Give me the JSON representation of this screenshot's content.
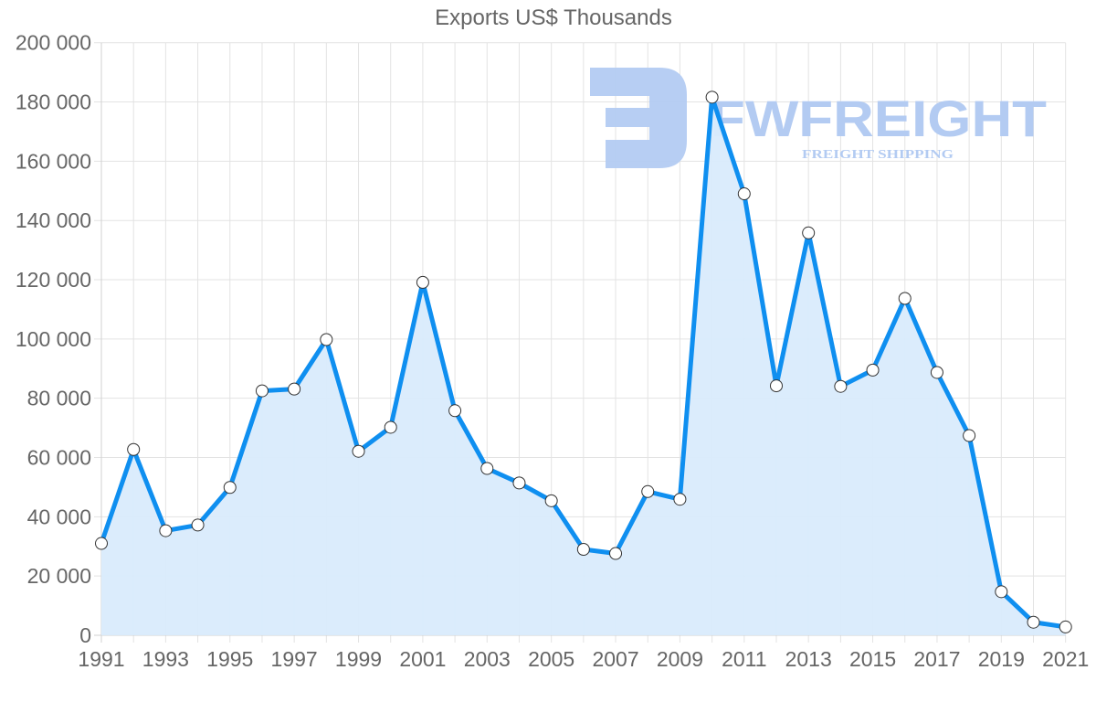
{
  "chart_data": {
    "type": "area",
    "title": "Exports US$ Thousands",
    "xlabel": "",
    "ylabel": "",
    "ylim": [
      0,
      200000
    ],
    "y_ticks": [
      0,
      20000,
      40000,
      60000,
      80000,
      100000,
      120000,
      140000,
      160000,
      180000,
      200000
    ],
    "y_tick_labels": [
      "0",
      "20 000",
      "40 000",
      "60 000",
      "80 000",
      "100 000",
      "120 000",
      "140 000",
      "160 000",
      "180 000",
      "200 000"
    ],
    "x_tick_labels": [
      "1991",
      "1993",
      "1995",
      "1997",
      "1999",
      "2001",
      "2003",
      "2005",
      "2007",
      "2009",
      "2011",
      "2013",
      "2015",
      "2017",
      "2019",
      "2021"
    ],
    "grid": true,
    "legend": null,
    "x": [
      1991,
      1992,
      1993,
      1994,
      1995,
      1996,
      1997,
      1998,
      1999,
      2000,
      2001,
      2002,
      2003,
      2004,
      2005,
      2006,
      2007,
      2008,
      2009,
      2010,
      2011,
      2012,
      2013,
      2014,
      2015,
      2016,
      2017,
      2018,
      2019,
      2020,
      2021
    ],
    "series": [
      {
        "name": "Exports",
        "values": [
          31000,
          62700,
          35300,
          37200,
          49900,
          82500,
          83100,
          99800,
          62100,
          70200,
          119100,
          75800,
          56300,
          51400,
          45400,
          29000,
          27600,
          48500,
          45900,
          181600,
          149000,
          84200,
          135800,
          84000,
          89500,
          113700,
          88700,
          67400,
          14700,
          4400,
          2800
        ]
      }
    ]
  },
  "colors": {
    "line": "#0f8ff0",
    "fill": "#d9ebfc",
    "grid": "#e3e3e3",
    "axis_text": "#666666",
    "point_fill": "#ffffff",
    "point_stroke": "#333333",
    "watermark": "#b3cbf2"
  },
  "watermark": {
    "brand": "FWFREIGHT",
    "tagline": "FREIGHT SHIPPING"
  }
}
